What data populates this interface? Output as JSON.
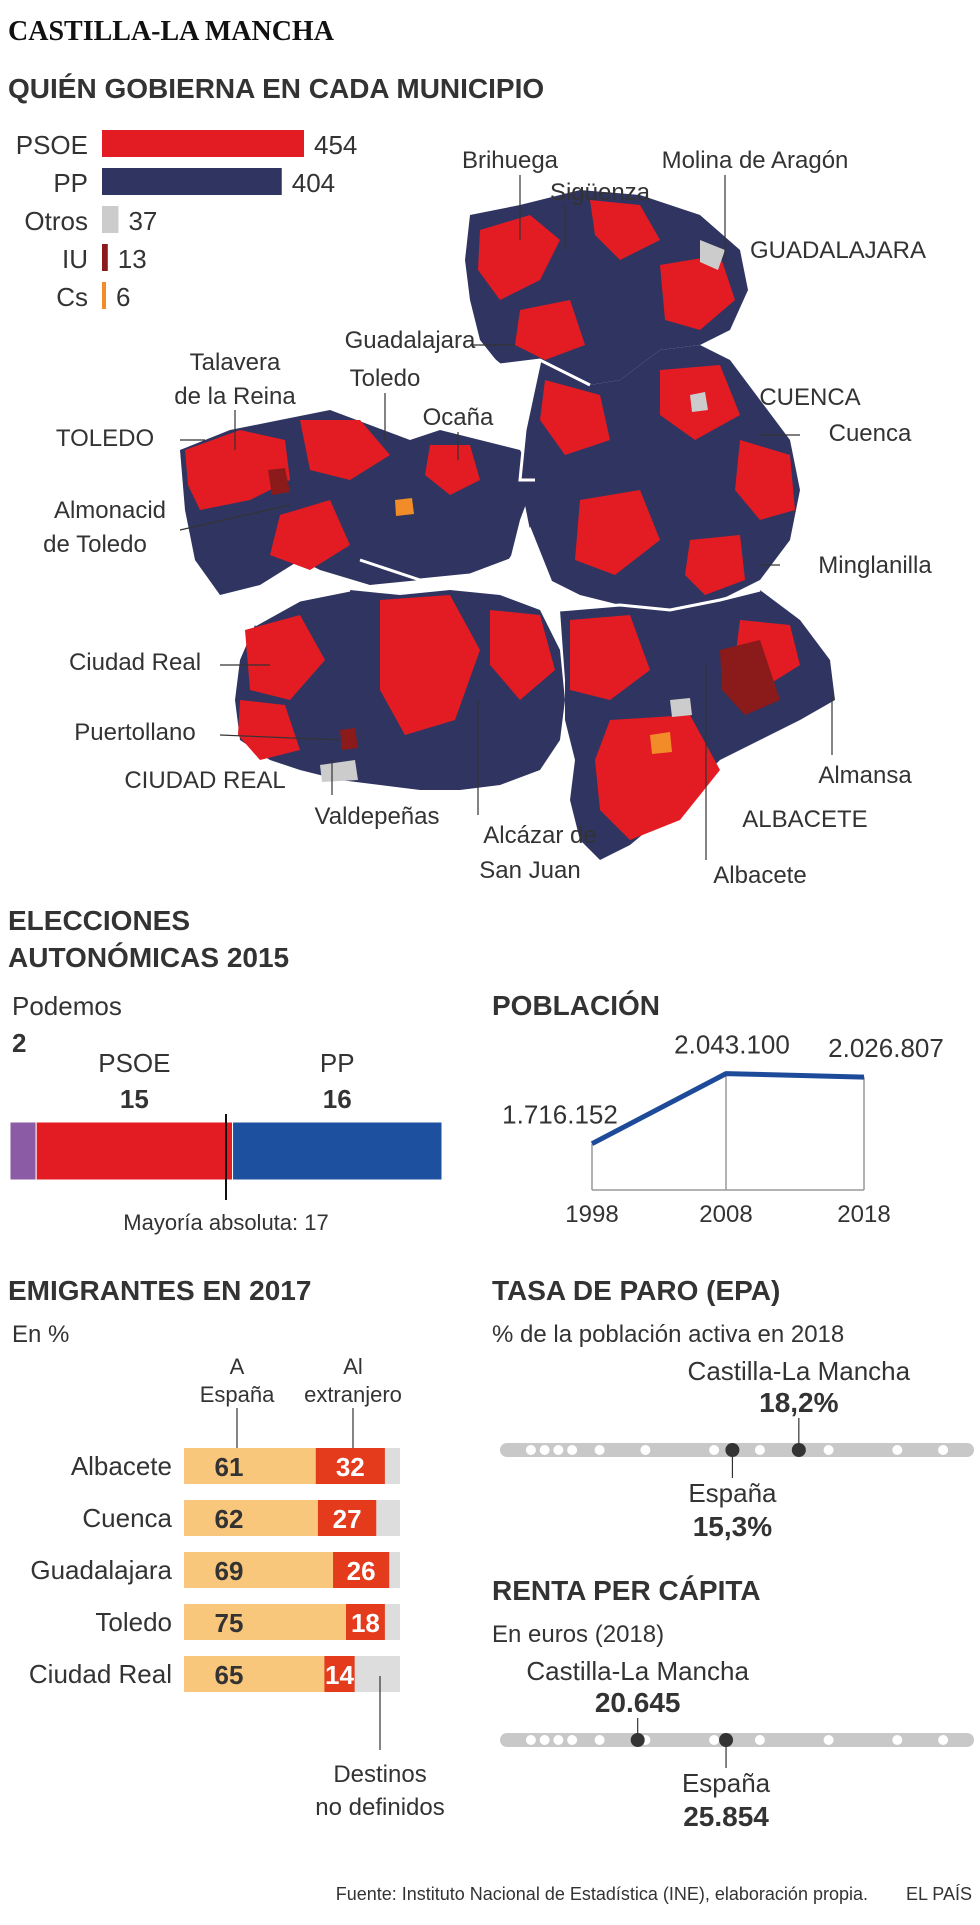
{
  "header": {
    "region_title": "CASTILLA-LA MANCHA",
    "subtitle": "QUIÉN GOBIERNA EN CADA MUNICIPIO"
  },
  "colors": {
    "psoe": "#e31b23",
    "pp": "#2f3560",
    "otros": "#cccccc",
    "iu": "#8b1a1a",
    "cs": "#f28c28",
    "pp_autonomicas": "#1e50a0",
    "podemos": "#8c5ba5",
    "spain_bar": "#f9c77c",
    "abroad_bar": "#e33b1c",
    "undefined_bar": "#dddddd",
    "line_color": "#1e4a9a"
  },
  "map": {
    "labels": {
      "brihuega": "Brihuega",
      "siguenza": "Sigüenza",
      "molina": "Molina de Aragón",
      "guadalajara_prov": "GUADALAJARA",
      "guadalajara_city": "Guadalajara",
      "talavera_1": "Talavera",
      "talavera_2": "de la Reina",
      "toledo_city": "Toledo",
      "ocana": "Ocaña",
      "toledo_prov": "TOLEDO",
      "almonacid_1": "Almonacid",
      "almonacid_2": "de Toledo",
      "cuenca_prov": "CUENCA",
      "cuenca_city": "Cuenca",
      "minglanilla": "Minglanilla",
      "ciudad_real_city": "Ciudad Real",
      "puertollano": "Puertollano",
      "ciudad_real_prov": "CIUDAD REAL",
      "valdepenas": "Valdepeñas",
      "alcazar_1": "Alcázar de",
      "alcazar_2": "San Juan",
      "albacete_prov": "ALBACETE",
      "albacete_city": "Albacete",
      "almansa": "Almansa"
    }
  },
  "chart_data": [
    {
      "type": "bar",
      "id": "municipios",
      "categories": [
        "PSOE",
        "PP",
        "Otros",
        "IU",
        "Cs"
      ],
      "values": [
        454,
        404,
        37,
        13,
        6
      ],
      "title": "QUIÉN GOBIERNA EN CADA MUNICIPIO"
    },
    {
      "type": "bar",
      "id": "autonomicas",
      "title_line1": "ELECCIONES",
      "title_line2": "AUTONÓMICAS 2015",
      "categories": [
        "Podemos",
        "PSOE",
        "PP"
      ],
      "values": [
        2,
        15,
        16
      ],
      "total_seats": 33,
      "majority": 17,
      "majority_label": "Mayoría absoluta: 17"
    },
    {
      "type": "line",
      "id": "poblacion",
      "title": "POBLACIÓN",
      "x": [
        "1998",
        "2008",
        "2018"
      ],
      "values": [
        1716152,
        2043100,
        2026807
      ],
      "value_labels": [
        "1.716.152",
        "2.043.100",
        "2.026.807"
      ]
    },
    {
      "type": "bar",
      "id": "emigrantes",
      "title": "EMIGRANTES EN 2017",
      "unit_label": "En %",
      "header_spain_1": "A",
      "header_spain_2": "España",
      "header_abroad_1": "Al",
      "header_abroad_2": "extranjero",
      "undefined_label_1": "Destinos",
      "undefined_label_2": "no definidos",
      "categories": [
        "Albacete",
        "Cuenca",
        "Guadalajara",
        "Toledo",
        "Ciudad Real"
      ],
      "series": [
        {
          "name": "A España",
          "values": [
            61,
            62,
            69,
            75,
            65
          ]
        },
        {
          "name": "Al extranjero",
          "values": [
            32,
            27,
            26,
            18,
            14
          ]
        }
      ]
    },
    {
      "type": "scatter",
      "id": "paro",
      "title": "TASA DE PARO (EPA)",
      "subtitle": "% de la población activa en 2018",
      "highlight_region": {
        "label": "Castilla-La Mancha",
        "value_label": "18,2%",
        "value": 18.2
      },
      "highlight_spain": {
        "label": "España",
        "value_label": "15,3%",
        "value": 15.3
      }
    },
    {
      "type": "scatter",
      "id": "renta",
      "title": "RENTA PER CÁPITA",
      "subtitle": "En euros (2018)",
      "highlight_region": {
        "label": "Castilla-La Mancha",
        "value_label": "20.645",
        "value": 20645
      },
      "highlight_spain": {
        "label": "España",
        "value_label": "25.854",
        "value": 25854
      }
    }
  ],
  "footer": {
    "source": "Fuente: Instituto Nacional de Estadística (INE), elaboración propia.",
    "brand": "EL PAÍS"
  }
}
